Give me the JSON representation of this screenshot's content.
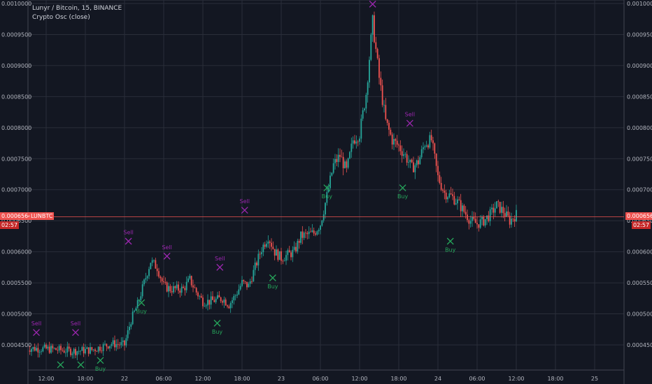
{
  "header": {
    "symbol_line": "Lunyr / Bitcoin, 15, BINANCE",
    "indicator_line": "Crypto Osc (close)"
  },
  "price_tag": {
    "value_left": "0.0006564",
    "value_right": "0.0006564",
    "symbol": "LUNBTC",
    "countdown_left": "02:57",
    "countdown_right": "02:57"
  },
  "colors": {
    "background": "#131722",
    "grid": "#2a2e39",
    "up": "#26a69a",
    "down": "#ef5350",
    "sell": "#9c27b0",
    "buy": "#26a65b",
    "axis_text": "#b2b5be",
    "price_line": "#ef5350"
  },
  "chart_data": {
    "type": "candlestick",
    "title": "Lunyr / Bitcoin, 15, BINANCE",
    "subtitle": "Crypto Osc (close)",
    "y_axis": {
      "min": 0.00041,
      "max": 0.001,
      "ticks": [
        "0.0010000",
        "0.0009500",
        "0.0009000",
        "0.0008500",
        "0.0008000",
        "0.0007500",
        "0.0007000",
        "0.0006500",
        "0.0006000",
        "0.0005500",
        "0.0005000",
        "0.0004500"
      ]
    },
    "x_axis": {
      "start_hour": 9,
      "end_hour": 84,
      "ticks": [
        {
          "label": "12:00",
          "hour": 12
        },
        {
          "label": "18:00",
          "hour": 18
        },
        {
          "label": "22",
          "hour": 24
        },
        {
          "label": "06:00",
          "hour": 30
        },
        {
          "label": "12:00",
          "hour": 36
        },
        {
          "label": "18:00",
          "hour": 42
        },
        {
          "label": "23",
          "hour": 48
        },
        {
          "label": "06:00",
          "hour": 54
        },
        {
          "label": "12:00",
          "hour": 60
        },
        {
          "label": "18:00",
          "hour": 66
        },
        {
          "label": "24",
          "hour": 72
        },
        {
          "label": "06:00",
          "hour": 78
        },
        {
          "label": "12:00",
          "hour": 84
        },
        {
          "label": "18:00",
          "hour": 90
        },
        {
          "label": "25",
          "hour": 96
        }
      ]
    },
    "last_price": 0.0006564,
    "path": [
      [
        9,
        0.000445
      ],
      [
        13,
        0.000443
      ],
      [
        16,
        0.00044
      ],
      [
        19,
        0.000442
      ],
      [
        22,
        0.000452
      ],
      [
        24,
        0.00045
      ],
      [
        25,
        0.00049
      ],
      [
        26,
        0.000515
      ],
      [
        27,
        0.00055
      ],
      [
        28,
        0.000585
      ],
      [
        29,
        0.000575
      ],
      [
        30,
        0.000545
      ],
      [
        31,
        0.00054
      ],
      [
        33,
        0.00054
      ],
      [
        34,
        0.000555
      ],
      [
        35,
        0.000535
      ],
      [
        36,
        0.00052
      ],
      [
        37,
        0.00052
      ],
      [
        39,
        0.000525
      ],
      [
        40,
        0.000515
      ],
      [
        41,
        0.00053
      ],
      [
        42,
        0.00055
      ],
      [
        43,
        0.000545
      ],
      [
        44,
        0.000575
      ],
      [
        45,
        0.000605
      ],
      [
        46,
        0.000625
      ],
      [
        47,
        0.0006
      ],
      [
        48,
        0.00059
      ],
      [
        50,
        0.0006
      ],
      [
        51,
        0.000625
      ],
      [
        53,
        0.00063
      ],
      [
        54,
        0.000645
      ],
      [
        55,
        0.00069
      ],
      [
        56,
        0.00074
      ],
      [
        57,
        0.000755
      ],
      [
        58,
        0.00073
      ],
      [
        59,
        0.00078
      ],
      [
        60,
        0.00079
      ],
      [
        61,
        0.000855
      ],
      [
        62,
        0.00097
      ],
      [
        63,
        0.00088
      ],
      [
        64,
        0.00081
      ],
      [
        65,
        0.00078
      ],
      [
        66,
        0.00077
      ],
      [
        67,
        0.000755
      ],
      [
        68,
        0.000735
      ],
      [
        69,
        0.000745
      ],
      [
        70,
        0.000775
      ],
      [
        71,
        0.00078
      ],
      [
        72,
        0.00072
      ],
      [
        73,
        0.000695
      ],
      [
        74,
        0.00069
      ],
      [
        75,
        0.00068
      ],
      [
        76,
        0.000665
      ],
      [
        77,
        0.00065
      ],
      [
        78,
        0.000645
      ],
      [
        79,
        0.00065
      ],
      [
        80,
        0.00066
      ],
      [
        81,
        0.000675
      ],
      [
        82,
        0.000665
      ],
      [
        83,
        0.00065
      ],
      [
        84,
        0.00066
      ]
    ],
    "signals": [
      {
        "type": "sell",
        "hour": 10.5,
        "value": 0.00047,
        "label": "Sell"
      },
      {
        "type": "buy",
        "hour": 14.2,
        "value": 0.000418,
        "label": ""
      },
      {
        "type": "sell",
        "hour": 16.5,
        "value": 0.00047,
        "label": "Sell"
      },
      {
        "type": "buy",
        "hour": 17.3,
        "value": 0.000418,
        "label": ""
      },
      {
        "type": "buy",
        "hour": 20.3,
        "value": 0.000425,
        "label": "Buy"
      },
      {
        "type": "sell",
        "hour": 24.6,
        "value": 0.000617,
        "label": "Sell"
      },
      {
        "type": "buy",
        "hour": 26.6,
        "value": 0.000518,
        "label": "Buy"
      },
      {
        "type": "sell",
        "hour": 30.5,
        "value": 0.000593,
        "label": "Sell"
      },
      {
        "type": "buy",
        "hour": 38.2,
        "value": 0.000485,
        "label": "Buy"
      },
      {
        "type": "sell",
        "hour": 38.6,
        "value": 0.000575,
        "label": "Sell"
      },
      {
        "type": "sell",
        "hour": 42.4,
        "value": 0.000667,
        "label": "Sell"
      },
      {
        "type": "buy",
        "hour": 46.7,
        "value": 0.000558,
        "label": "Buy"
      },
      {
        "type": "buy",
        "hour": 55.0,
        "value": 0.000703,
        "label": "Buy"
      },
      {
        "type": "sell",
        "hour": 62.0,
        "value": 0.000999,
        "label": ""
      },
      {
        "type": "buy",
        "hour": 66.6,
        "value": 0.000703,
        "label": "Buy"
      },
      {
        "type": "sell",
        "hour": 67.7,
        "value": 0.000807,
        "label": "Sell"
      },
      {
        "type": "buy",
        "hour": 73.9,
        "value": 0.000617,
        "label": "Buy"
      }
    ]
  }
}
